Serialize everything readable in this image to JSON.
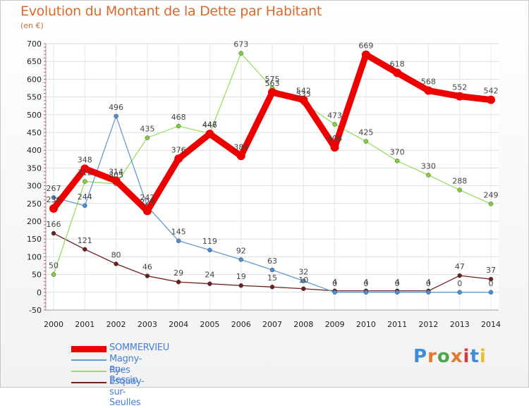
{
  "title": "Evolution du Montant de la Dette par Habitant",
  "subtitle": "(en €)",
  "logo": {
    "text": "Proxiti",
    "colors": [
      "#3a8fd6",
      "#e8772e",
      "#4aa84a",
      "#e8772e",
      "#d63a3a",
      "#3a8fd6",
      "#e8c02e"
    ]
  },
  "chart_data": {
    "type": "line",
    "title": "Evolution du Montant de la Dette par Habitant",
    "ylabel": "(en €)",
    "x": [
      "2000",
      "2001",
      "2002",
      "2003",
      "2004",
      "2005",
      "2006",
      "2007",
      "2008",
      "2009",
      "2010",
      "2011",
      "2012",
      "2013",
      "2014"
    ],
    "ylim": [
      -50,
      700
    ],
    "yticks": [
      -50,
      0,
      50,
      100,
      150,
      200,
      250,
      300,
      350,
      400,
      450,
      500,
      550,
      600,
      650,
      700
    ],
    "grid": true,
    "legend": "bottom-left",
    "series": [
      {
        "name": "SOMMERVIEU",
        "color": "#ee0000",
        "width": 9,
        "values": [
          236,
          348,
          314,
          229,
          376,
          446,
          384,
          563,
          542,
          408,
          669,
          618,
          568,
          552,
          542
        ],
        "labels": [
          "236",
          "348",
          "314",
          "229",
          "376",
          "446",
          "384",
          "563",
          "542",
          "408",
          "669",
          "618",
          "568",
          "552",
          "542"
        ]
      },
      {
        "name": "Magny-en-Bessin",
        "color": "#6699cc",
        "width": 1.3,
        "values": [
          267,
          244,
          496,
          242,
          145,
          119,
          92,
          63,
          32,
          0,
          0,
          0,
          0,
          0,
          0
        ],
        "labels": [
          "267",
          "244",
          "496",
          "242",
          "145",
          "119",
          "92",
          "63",
          "32",
          "0",
          "0",
          "0",
          "0",
          "0",
          "0"
        ]
      },
      {
        "name": "Ryes",
        "color": "#99dd66",
        "width": 1.3,
        "values": [
          50,
          312,
          305,
          435,
          468,
          447,
          673,
          575,
          533,
          473,
          425,
          370,
          330,
          288,
          249
        ],
        "labels": [
          "50",
          "312",
          "305",
          "435",
          "468",
          "447",
          "673",
          "575",
          "533",
          "473",
          "425",
          "370",
          "330",
          "288",
          "249"
        ]
      },
      {
        "name": "Esquay-sur-Seulles",
        "color": "#6b1f1f",
        "width": 1.3,
        "values": [
          166,
          121,
          80,
          46,
          29,
          24,
          19,
          15,
          10,
          4,
          4,
          4,
          4,
          47,
          37
        ],
        "labels": [
          "166",
          "121",
          "80",
          "46",
          "29",
          "24",
          "19",
          "15",
          "10",
          "4",
          "4",
          "4",
          "4",
          "47",
          "37"
        ]
      }
    ]
  }
}
